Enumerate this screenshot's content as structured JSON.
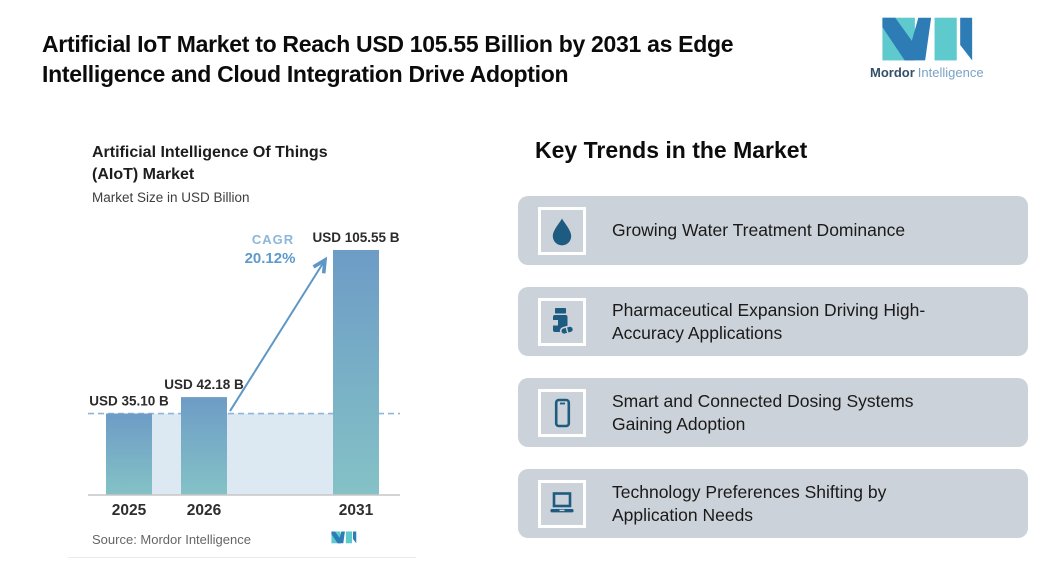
{
  "header": {
    "title_lines": [
      "Artificial IoT Market to Reach USD 105.55 Billion by 2031 as Edge",
      "Intelligence and Cloud Integration Drive Adoption"
    ]
  },
  "logo": {
    "brand_primary": "Mordor",
    "brand_secondary": "Intelligence"
  },
  "colors": {
    "logo_teal": "#5ecace",
    "logo_blue": "#2e7cb6",
    "brand_dark": "#344f69",
    "brand_light": "#7aa2c6",
    "card_bg": "#ccd2d9",
    "icon_dark": "#1d5c80",
    "icon_box_border": "#ffffff"
  },
  "chart": {
    "title_line1": "Artificial Intelligence Of Things",
    "title_line2": "(AIoT) Market",
    "subtitle": "Market Size in USD Billion",
    "source": "Source: Mordor Intelligence"
  },
  "chart_data": {
    "type": "bar",
    "title": "Artificial Intelligence Of Things (AIoT) Market",
    "ylabel": "Market Size in USD Billion",
    "xlabel": "",
    "categories": [
      "2025",
      "2026",
      "2031"
    ],
    "values": [
      35.1,
      42.18,
      105.55
    ],
    "bar_labels": [
      "USD 35.10 B",
      "USD 42.18 B",
      "USD 105.55 B"
    ],
    "ylim": [
      0,
      105.55
    ],
    "grid": false,
    "legend": false,
    "annotation": {
      "label": "CAGR",
      "value": "20.12%"
    },
    "baseline_reference_value": 35.1,
    "bar_color_top": "#6d9cc6",
    "bar_color_bottom": "#84c2c6",
    "shade_color": "#dde9f2",
    "dash_color": "#8fb6d9",
    "arrow_color": "#5e97c6",
    "axis_color": "#c6c6c6",
    "cagr_label_color": "#8cb7da",
    "cagr_value_color": "#5e9acb"
  },
  "trends": {
    "heading": "Key Trends in the Market",
    "items": [
      {
        "icon": "water-drop-icon",
        "label": "Growing Water Treatment Dominance"
      },
      {
        "icon": "pill-bottle-icon",
        "label": "Pharmaceutical Expansion Driving High-Accuracy Applications"
      },
      {
        "icon": "smartphone-icon",
        "label": "Smart and Connected Dosing Systems Gaining Adoption"
      },
      {
        "icon": "laptop-icon",
        "label": "Technology Preferences Shifting by Application Needs"
      }
    ]
  }
}
